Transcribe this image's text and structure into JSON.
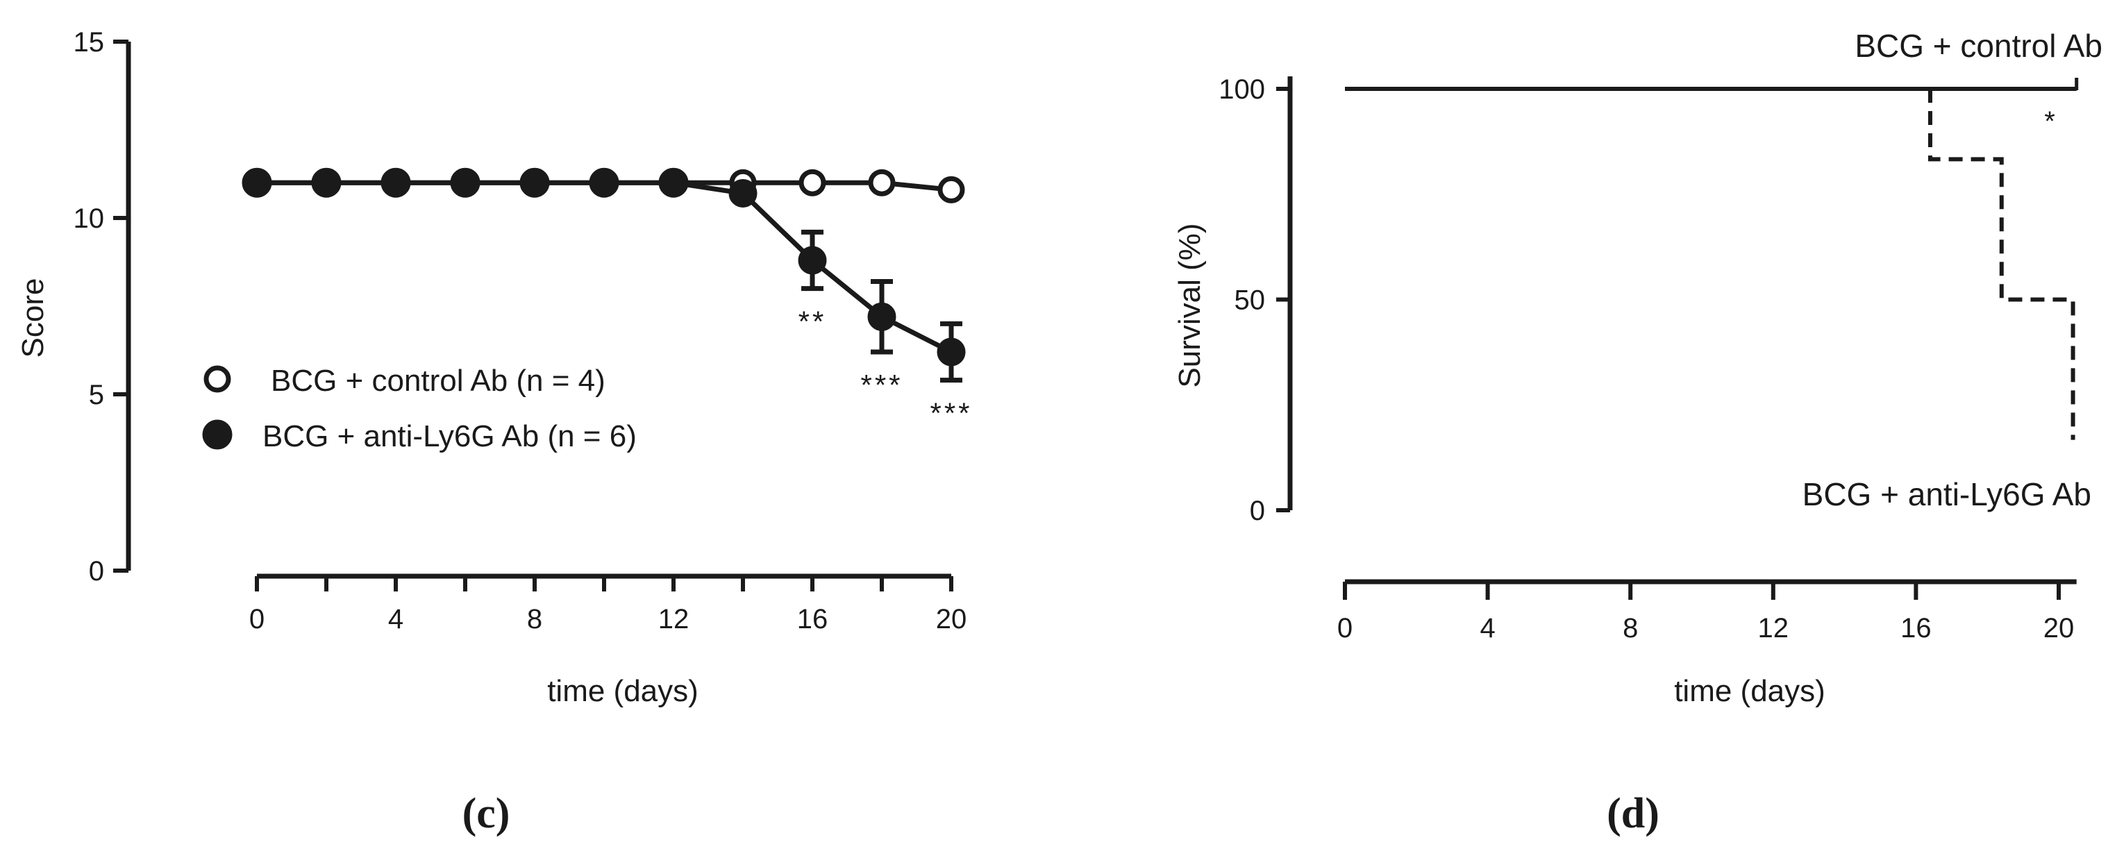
{
  "chart_data": [
    {
      "type": "line",
      "panel_label": "(c)",
      "title": "",
      "xlabel": "time (days)",
      "ylabel": "Score",
      "xlim": [
        0,
        20
      ],
      "ylim": [
        0,
        15
      ],
      "x_ticks": [
        "0",
        "4",
        "8",
        "12",
        "16",
        "20"
      ],
      "y_ticks": [
        "0",
        "5",
        "10",
        "15"
      ],
      "grid": false,
      "legend_position": "middle-left",
      "series": [
        {
          "name": "BCG + control Ab (n = 4)",
          "marker": "open-circle",
          "x": [
            0,
            2,
            4,
            6,
            8,
            10,
            12,
            14,
            16,
            18,
            20
          ],
          "y": [
            11,
            11,
            11,
            11,
            11,
            11,
            11,
            11,
            11,
            11,
            10.8
          ]
        },
        {
          "name": "BCG + anti-Ly6G Ab (n = 6)",
          "marker": "filled-circle",
          "x": [
            0,
            2,
            4,
            6,
            8,
            10,
            12,
            14,
            16,
            18,
            20
          ],
          "y": [
            11,
            11,
            11,
            11,
            11,
            11,
            11,
            10.7,
            8.8,
            7.2,
            6.2
          ],
          "error": [
            0,
            0,
            0,
            0,
            0,
            0,
            0,
            0,
            0.8,
            1.0,
            0.8
          ]
        }
      ],
      "annotations": [
        {
          "x": 16,
          "text": "**"
        },
        {
          "x": 18,
          "text": "***"
        },
        {
          "x": 20,
          "text": "***"
        }
      ]
    },
    {
      "type": "line",
      "subtype": "survival-step",
      "panel_label": "(d)",
      "title": "",
      "xlabel": "time (days)",
      "ylabel": "Survival (%)",
      "xlim": [
        0,
        20.5
      ],
      "ylim": [
        0,
        100
      ],
      "x_ticks": [
        "0",
        "4",
        "8",
        "12",
        "16",
        "20"
      ],
      "y_ticks": [
        "0",
        "50",
        "100"
      ],
      "grid": false,
      "series": [
        {
          "name": "BCG + control Ab",
          "style": "solid",
          "x": [
            0,
            20.5
          ],
          "y": [
            100,
            100
          ]
        },
        {
          "name": "BCG + anti-Ly6G Ab",
          "style": "dashed",
          "x": [
            16.4,
            16.4,
            18.4,
            18.4,
            20.4,
            20.4
          ],
          "y": [
            100,
            83.3,
            83.3,
            50,
            50,
            16.7
          ]
        }
      ],
      "annotations": [
        {
          "x": 19.4,
          "y": 93,
          "text": "*"
        }
      ]
    }
  ]
}
